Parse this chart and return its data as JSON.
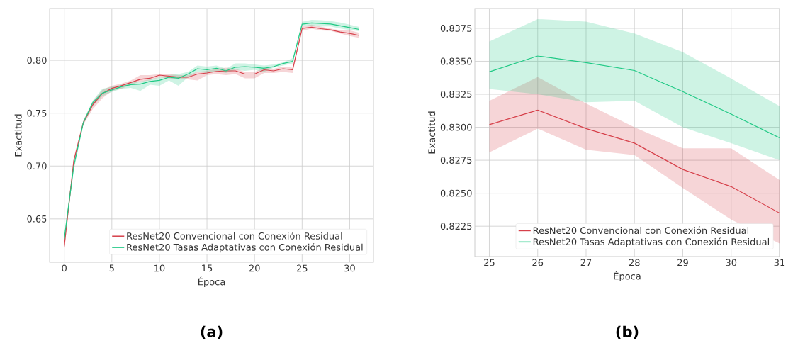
{
  "chart_data": [
    {
      "type": "line",
      "xlabel": "Época",
      "ylabel": "Exactitud",
      "annotations": [
        "(a)"
      ],
      "x": [
        0,
        1,
        2,
        3,
        4,
        5,
        6,
        7,
        8,
        9,
        10,
        11,
        12,
        13,
        14,
        15,
        16,
        17,
        18,
        19,
        20,
        21,
        22,
        23,
        24,
        25,
        26,
        27,
        28,
        29,
        30,
        31
      ],
      "xlim": [
        -1.54,
        32.5
      ],
      "ylim": [
        0.609,
        0.849
      ],
      "xticks": [
        0,
        5,
        10,
        15,
        20,
        25,
        30
      ],
      "yticks": [
        0.65,
        {
          "value": 0.7,
          "label": "0.70"
        },
        0.75,
        {
          "value": 0.8,
          "label": "0.80"
        }
      ],
      "grid": true,
      "legend": "bottom right",
      "series": [
        {
          "name": "ResNet20 Convencional con Conexión Residual",
          "color": "#d6404a",
          "values": [
            0.624,
            0.705,
            0.741,
            0.758,
            0.7686,
            0.7735,
            0.776,
            0.779,
            0.782,
            0.783,
            0.786,
            0.785,
            0.784,
            0.784,
            0.787,
            0.788,
            0.7895,
            0.79,
            0.79,
            0.787,
            0.787,
            0.791,
            0.79,
            0.792,
            0.791,
            0.8302,
            0.8313,
            0.8299,
            0.8288,
            0.8268,
            0.8255,
            0.8235
          ],
          "lower": [
            0.62,
            0.702,
            0.739,
            0.754,
            0.764,
            0.771,
            0.773,
            0.777,
            0.78,
            0.781,
            0.784,
            0.783,
            0.782,
            0.782,
            0.781,
            0.786,
            0.787,
            0.786,
            0.787,
            0.783,
            0.783,
            0.788,
            0.788,
            0.789,
            0.788,
            0.8281,
            0.8299,
            0.8283,
            0.8279,
            0.8254,
            0.823,
            0.8212
          ],
          "upper": [
            0.628,
            0.708,
            0.743,
            0.761,
            0.772,
            0.776,
            0.778,
            0.781,
            0.786,
            0.786,
            0.787,
            0.787,
            0.786,
            0.786,
            0.789,
            0.79,
            0.792,
            0.793,
            0.792,
            0.789,
            0.789,
            0.793,
            0.792,
            0.794,
            0.793,
            0.832,
            0.8338,
            0.8318,
            0.83,
            0.8284,
            0.8284,
            0.826
          ]
        },
        {
          "name": "ResNet20 Tasas Adaptativas con Conexión Residual",
          "color": "#20c985",
          "values": [
            0.631,
            0.7,
            0.741,
            0.76,
            0.769,
            0.772,
            0.775,
            0.777,
            0.7775,
            0.78,
            0.781,
            0.784,
            0.783,
            0.787,
            0.792,
            0.791,
            0.7925,
            0.79,
            0.7935,
            0.794,
            0.7935,
            0.7925,
            0.794,
            0.797,
            0.799,
            0.8342,
            0.8354,
            0.8349,
            0.8343,
            0.8327,
            0.831,
            0.8292
          ],
          "lower": [
            0.627,
            0.696,
            0.739,
            0.757,
            0.766,
            0.77,
            0.773,
            0.774,
            0.771,
            0.777,
            0.776,
            0.781,
            0.776,
            0.784,
            0.789,
            0.788,
            0.79,
            0.788,
            0.791,
            0.79,
            0.791,
            0.789,
            0.793,
            0.795,
            0.797,
            0.8329,
            0.8325,
            0.8319,
            0.832,
            0.83,
            0.8288,
            0.8275
          ],
          "upper": [
            0.635,
            0.704,
            0.743,
            0.762,
            0.773,
            0.775,
            0.777,
            0.779,
            0.78,
            0.782,
            0.784,
            0.786,
            0.787,
            0.789,
            0.795,
            0.794,
            0.795,
            0.792,
            0.797,
            0.797,
            0.796,
            0.795,
            0.796,
            0.798,
            0.802,
            0.8365,
            0.8382,
            0.838,
            0.8371,
            0.8357,
            0.8337,
            0.8316
          ]
        }
      ]
    },
    {
      "type": "line",
      "xlabel": "Época",
      "ylabel": "Exactitud",
      "annotations": [
        "(b)"
      ],
      "x": [
        25,
        26,
        27,
        28,
        29,
        30,
        31
      ],
      "xlim": [
        24.7,
        31
      ],
      "ylim": [
        0.8202,
        0.839
      ],
      "xticks": [
        25,
        26,
        27,
        28,
        29,
        30,
        31
      ],
      "yticks": [
        0.8225,
        {
          "value": 0.825,
          "label": "0.8250"
        },
        0.8275,
        {
          "value": 0.83,
          "label": "0.8300"
        },
        0.8325,
        {
          "value": 0.835,
          "label": "0.8350"
        },
        0.8375
      ],
      "grid": true,
      "legend": "bottom right",
      "series": [
        {
          "name": "ResNet20 Convencional con Conexión Residual",
          "color": "#d6404a",
          "values": [
            0.8302,
            0.8313,
            0.8299,
            0.8288,
            0.8268,
            0.8255,
            0.8235
          ],
          "lower": [
            0.8281,
            0.8299,
            0.8283,
            0.8279,
            0.8254,
            0.823,
            0.8212
          ],
          "upper": [
            0.832,
            0.8338,
            0.8318,
            0.83,
            0.8284,
            0.8284,
            0.826
          ]
        },
        {
          "name": "ResNet20 Tasas Adaptativas con Conexión Residual",
          "color": "#20c985",
          "values": [
            0.8342,
            0.8354,
            0.8349,
            0.8343,
            0.8327,
            0.831,
            0.8292
          ],
          "lower": [
            0.8329,
            0.8325,
            0.8319,
            0.832,
            0.83,
            0.8288,
            0.8275
          ],
          "upper": [
            0.8365,
            0.8382,
            0.838,
            0.8371,
            0.8357,
            0.8337,
            0.8316
          ]
        }
      ]
    }
  ]
}
